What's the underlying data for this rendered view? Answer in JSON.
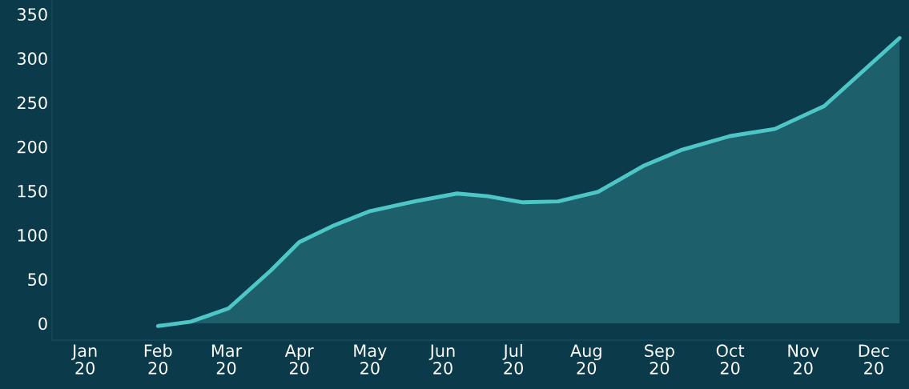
{
  "chart_data": {
    "type": "area",
    "x": [
      "2020-02-01",
      "2020-02-15",
      "2020-03-02",
      "2020-03-20",
      "2020-04-01",
      "2020-04-15",
      "2020-05-01",
      "2020-05-20",
      "2020-06-07",
      "2020-06-20",
      "2020-07-05",
      "2020-07-20",
      "2020-08-06",
      "2020-08-25",
      "2020-09-10",
      "2020-10-01",
      "2020-10-20",
      "2020-11-10",
      "2020-12-12"
    ],
    "series": [
      {
        "color": "#4fc6c6",
        "values": [
          -3,
          2,
          17,
          60,
          92,
          110,
          127,
          138,
          147,
          144,
          137,
          138,
          149,
          178,
          196,
          212,
          220,
          246,
          323
        ]
      }
    ],
    "xlim": [
      "2019-12-18",
      "2020-12-16"
    ],
    "xticks": [
      {
        "value": "2020-01-01",
        "label": "Jan\n20"
      },
      {
        "value": "2020-02-01",
        "label": "Feb\n20"
      },
      {
        "value": "2020-03-01",
        "label": "Mar\n20"
      },
      {
        "value": "2020-04-01",
        "label": "Apr\n20"
      },
      {
        "value": "2020-05-01",
        "label": "May\n20"
      },
      {
        "value": "2020-06-01",
        "label": "Jun\n20"
      },
      {
        "value": "2020-07-01",
        "label": "Jul\n20"
      },
      {
        "value": "2020-08-01",
        "label": "Aug\n20"
      },
      {
        "value": "2020-09-01",
        "label": "Sep\n20"
      },
      {
        "value": "2020-10-01",
        "label": "Oct\n20"
      },
      {
        "value": "2020-11-01",
        "label": "Nov\n20"
      },
      {
        "value": "2020-12-01",
        "label": "Dec\n20"
      }
    ],
    "ylim": [
      -19,
      366
    ],
    "yticks": [
      0,
      50,
      100,
      150,
      200,
      250,
      300,
      350
    ],
    "grid": false,
    "legend": false
  }
}
